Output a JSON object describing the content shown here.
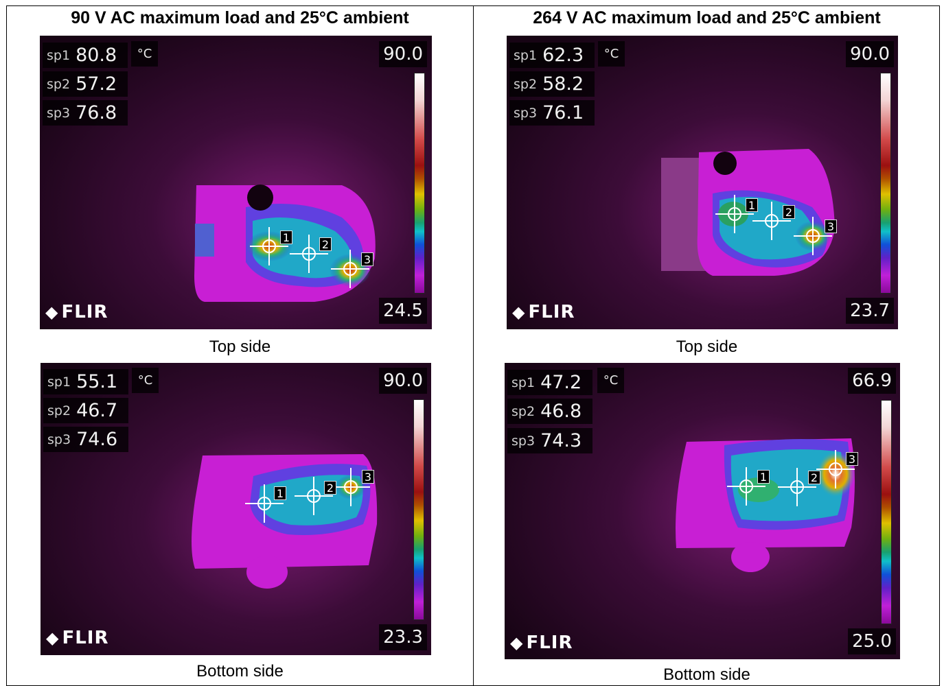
{
  "columns": [
    {
      "title": "90 V AC maximum load and 25°C ambient"
    },
    {
      "title": "264 V AC maximum load and 25°C ambient"
    }
  ],
  "panels": [
    {
      "caption": "Top side",
      "unit": "°C",
      "scale_max": "90.0",
      "scale_min": "24.5",
      "brand": "FLIR",
      "spots": [
        {
          "name": "sp1",
          "value": "80.8"
        },
        {
          "name": "sp2",
          "value": "57.2"
        },
        {
          "name": "sp3",
          "value": "76.8"
        }
      ],
      "markers": [
        "1",
        "2",
        "3"
      ]
    },
    {
      "caption": "Top side",
      "unit": "°C",
      "scale_max": "90.0",
      "scale_min": "23.7",
      "brand": "FLIR",
      "spots": [
        {
          "name": "sp1",
          "value": "62.3"
        },
        {
          "name": "sp2",
          "value": "58.2"
        },
        {
          "name": "sp3",
          "value": "76.1"
        }
      ],
      "markers": [
        "1",
        "2",
        "3"
      ]
    },
    {
      "caption": "Bottom side",
      "unit": "°C",
      "scale_max": "90.0",
      "scale_min": "23.3",
      "brand": "FLIR",
      "spots": [
        {
          "name": "sp1",
          "value": "55.1"
        },
        {
          "name": "sp2",
          "value": "46.7"
        },
        {
          "name": "sp3",
          "value": "74.6"
        }
      ],
      "markers": [
        "1",
        "2",
        "3"
      ]
    },
    {
      "caption": "Bottom side",
      "unit": "°C",
      "scale_max": "66.9",
      "scale_min": "25.0",
      "brand": "FLIR",
      "spots": [
        {
          "name": "sp1",
          "value": "47.2"
        },
        {
          "name": "sp2",
          "value": "46.8"
        },
        {
          "name": "sp3",
          "value": "74.3"
        }
      ],
      "markers": [
        "1",
        "2",
        "3"
      ]
    }
  ]
}
